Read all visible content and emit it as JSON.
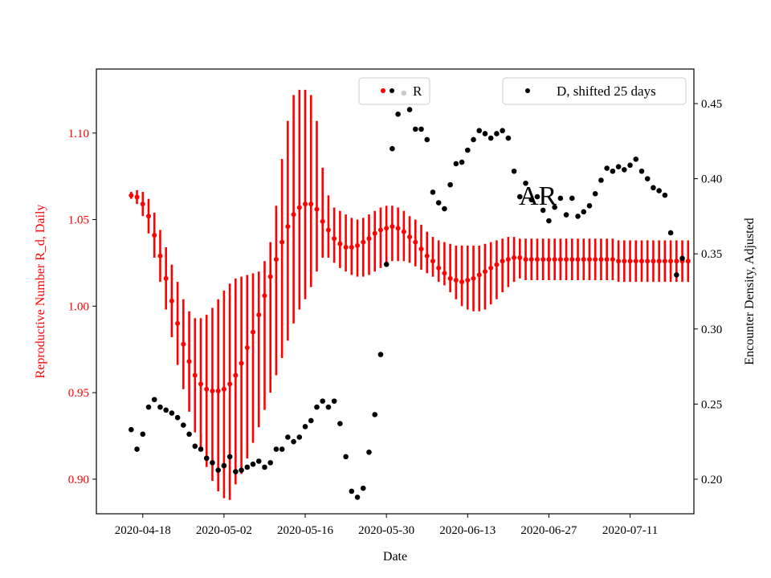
{
  "chart_data": {
    "type": "scatter",
    "annotation": "AR",
    "xlabel": "Date",
    "ylabel_left": "Reproductive Number R_d, Daily",
    "ylabel_right": "Encounter Density, Adjusted",
    "x_ticks": [
      "2020-04-18",
      "2020-05-02",
      "2020-05-16",
      "2020-05-30",
      "2020-06-13",
      "2020-06-27",
      "2020-07-11"
    ],
    "xlim": [
      "2020-04-10",
      "2020-07-22"
    ],
    "ylim_left": [
      0.88,
      1.137
    ],
    "ylim_right": [
      0.177,
      0.473
    ],
    "y_ticks_left": [
      0.9,
      0.95,
      1.0,
      1.05,
      1.1
    ],
    "y_ticks_right": [
      0.2,
      0.25,
      0.3,
      0.35,
      0.4,
      0.45
    ],
    "legend": {
      "r_label": "R",
      "d_label": "D, shifted 25 days"
    },
    "colors": {
      "r": "#ff0000",
      "d": "#000000",
      "left_axis": "#ff0000"
    },
    "series": [
      {
        "name": "R",
        "axis": "left",
        "with_error_bars": true,
        "start_date": "2020-04-16",
        "values": [
          1.064,
          1.063,
          1.059,
          1.052,
          1.041,
          1.029,
          1.016,
          1.003,
          0.99,
          0.978,
          0.968,
          0.96,
          0.955,
          0.952,
          0.951,
          0.951,
          0.952,
          0.955,
          0.96,
          0.967,
          0.976,
          0.985,
          0.995,
          1.006,
          1.017,
          1.027,
          1.037,
          1.046,
          1.053,
          1.057,
          1.059,
          1.059,
          1.056,
          1.049,
          1.044,
          1.039,
          1.036,
          1.034,
          1.034,
          1.035,
          1.037,
          1.039,
          1.042,
          1.044,
          1.045,
          1.046,
          1.045,
          1.043,
          1.04,
          1.037,
          1.033,
          1.029,
          1.026,
          1.022,
          1.019,
          1.016,
          1.015,
          1.014,
          1.015,
          1.016,
          1.018,
          1.02,
          1.022,
          1.024,
          1.026,
          1.027,
          1.028,
          1.028,
          1.027,
          1.027,
          1.027,
          1.027,
          1.027,
          1.027,
          1.027,
          1.027,
          1.027,
          1.027,
          1.027,
          1.027,
          1.027,
          1.027,
          1.027,
          1.027,
          1.026,
          1.026,
          1.026,
          1.026,
          1.026,
          1.026,
          1.026,
          1.026,
          1.026,
          1.026,
          1.026,
          1.026,
          1.026
        ],
        "lower": [
          1.062,
          1.059,
          1.052,
          1.042,
          1.028,
          1.014,
          0.998,
          0.982,
          0.966,
          0.952,
          0.939,
          0.927,
          0.916,
          0.907,
          0.899,
          0.893,
          0.889,
          0.888,
          0.897,
          0.903,
          0.912,
          0.921,
          0.93,
          0.94,
          0.95,
          0.96,
          0.97,
          0.98,
          0.99,
          0.998,
          1.004,
          1.011,
          1.02,
          1.028,
          1.028,
          1.025,
          1.022,
          1.02,
          1.018,
          1.017,
          1.017,
          1.018,
          1.02,
          1.022,
          1.024,
          1.026,
          1.026,
          1.026,
          1.025,
          1.023,
          1.021,
          1.019,
          1.017,
          1.014,
          1.012,
          1.008,
          1.004,
          1.0,
          0.998,
          0.997,
          0.997,
          0.998,
          1.001,
          1.004,
          1.008,
          1.011,
          1.014,
          1.016,
          1.015,
          1.015,
          1.015,
          1.015,
          1.015,
          1.015,
          1.015,
          1.015,
          1.015,
          1.015,
          1.015,
          1.015,
          1.015,
          1.015,
          1.015,
          1.015,
          1.014,
          1.014,
          1.014,
          1.014,
          1.014,
          1.014,
          1.014,
          1.014,
          1.014,
          1.014,
          1.014,
          1.014,
          1.014
        ],
        "upper": [
          1.066,
          1.067,
          1.066,
          1.062,
          1.054,
          1.044,
          1.034,
          1.024,
          1.014,
          1.004,
          0.997,
          0.993,
          0.993,
          0.995,
          0.999,
          1.004,
          1.009,
          1.013,
          1.016,
          1.017,
          1.018,
          1.019,
          1.02,
          1.026,
          1.037,
          1.058,
          1.085,
          1.107,
          1.122,
          1.125,
          1.125,
          1.122,
          1.107,
          1.08,
          1.064,
          1.057,
          1.055,
          1.053,
          1.051,
          1.05,
          1.051,
          1.053,
          1.055,
          1.057,
          1.058,
          1.058,
          1.057,
          1.055,
          1.052,
          1.05,
          1.047,
          1.043,
          1.04,
          1.038,
          1.037,
          1.036,
          1.035,
          1.035,
          1.035,
          1.035,
          1.035,
          1.036,
          1.037,
          1.038,
          1.039,
          1.04,
          1.04,
          1.039,
          1.039,
          1.039,
          1.039,
          1.039,
          1.039,
          1.039,
          1.039,
          1.039,
          1.039,
          1.039,
          1.039,
          1.039,
          1.039,
          1.039,
          1.039,
          1.039,
          1.038,
          1.038,
          1.038,
          1.038,
          1.038,
          1.038,
          1.038,
          1.038,
          1.038,
          1.038,
          1.038,
          1.038,
          1.038
        ]
      },
      {
        "name": "D, shifted 25 days",
        "axis": "right",
        "with_error_bars": false,
        "points": [
          [
            "2020-04-16",
            0.233
          ],
          [
            "2020-04-17",
            0.22
          ],
          [
            "2020-04-18",
            0.23
          ],
          [
            "2020-04-19",
            0.248
          ],
          [
            "2020-04-20",
            0.253
          ],
          [
            "2020-04-21",
            0.248
          ],
          [
            "2020-04-22",
            0.246
          ],
          [
            "2020-04-23",
            0.244
          ],
          [
            "2020-04-24",
            0.241
          ],
          [
            "2020-04-25",
            0.236
          ],
          [
            "2020-04-26",
            0.23
          ],
          [
            "2020-04-27",
            0.222
          ],
          [
            "2020-04-28",
            0.22
          ],
          [
            "2020-04-29",
            0.214
          ],
          [
            "2020-04-30",
            0.211
          ],
          [
            "2020-05-01",
            0.206
          ],
          [
            "2020-05-02",
            0.209
          ],
          [
            "2020-05-03",
            0.215
          ],
          [
            "2020-05-04",
            0.205
          ],
          [
            "2020-05-05",
            0.206
          ],
          [
            "2020-05-06",
            0.208
          ],
          [
            "2020-05-07",
            0.21
          ],
          [
            "2020-05-08",
            0.212
          ],
          [
            "2020-05-09",
            0.208
          ],
          [
            "2020-05-10",
            0.211
          ],
          [
            "2020-05-11",
            0.22
          ],
          [
            "2020-05-12",
            0.22
          ],
          [
            "2020-05-13",
            0.228
          ],
          [
            "2020-05-14",
            0.225
          ],
          [
            "2020-05-15",
            0.228
          ],
          [
            "2020-05-16",
            0.235
          ],
          [
            "2020-05-17",
            0.239
          ],
          [
            "2020-05-18",
            0.248
          ],
          [
            "2020-05-19",
            0.252
          ],
          [
            "2020-05-20",
            0.248
          ],
          [
            "2020-05-21",
            0.252
          ],
          [
            "2020-05-22",
            0.237
          ],
          [
            "2020-05-23",
            0.215
          ],
          [
            "2020-05-24",
            0.192
          ],
          [
            "2020-05-25",
            0.188
          ],
          [
            "2020-05-26",
            0.194
          ],
          [
            "2020-05-27",
            0.218
          ],
          [
            "2020-05-28",
            0.243
          ],
          [
            "2020-05-29",
            0.283
          ],
          [
            "2020-05-30",
            0.343
          ],
          [
            "2020-05-31",
            0.42
          ],
          [
            "2020-06-01",
            0.443
          ],
          [
            "2020-06-02",
            0.457
          ],
          [
            "2020-06-03",
            0.446
          ],
          [
            "2020-06-04",
            0.433
          ],
          [
            "2020-06-05",
            0.433
          ],
          [
            "2020-06-06",
            0.426
          ],
          [
            "2020-06-07",
            0.391
          ],
          [
            "2020-06-08",
            0.384
          ],
          [
            "2020-06-09",
            0.38
          ],
          [
            "2020-06-10",
            0.396
          ],
          [
            "2020-06-11",
            0.41
          ],
          [
            "2020-06-12",
            0.411
          ],
          [
            "2020-06-13",
            0.419
          ],
          [
            "2020-06-14",
            0.426
          ],
          [
            "2020-06-15",
            0.432
          ],
          [
            "2020-06-16",
            0.43
          ],
          [
            "2020-06-17",
            0.427
          ],
          [
            "2020-06-18",
            0.43
          ],
          [
            "2020-06-19",
            0.432
          ],
          [
            "2020-06-20",
            0.427
          ],
          [
            "2020-06-21",
            0.405
          ],
          [
            "2020-06-22",
            0.388
          ],
          [
            "2020-06-23",
            0.397
          ],
          [
            "2020-06-24",
            0.386
          ],
          [
            "2020-06-25",
            0.388
          ],
          [
            "2020-06-26",
            0.379
          ],
          [
            "2020-06-27",
            0.372
          ],
          [
            "2020-06-28",
            0.381
          ],
          [
            "2020-06-29",
            0.387
          ],
          [
            "2020-06-30",
            0.376
          ],
          [
            "2020-07-01",
            0.387
          ],
          [
            "2020-07-02",
            0.375
          ],
          [
            "2020-07-03",
            0.378
          ],
          [
            "2020-07-04",
            0.382
          ],
          [
            "2020-07-05",
            0.39
          ],
          [
            "2020-07-06",
            0.399
          ],
          [
            "2020-07-07",
            0.407
          ],
          [
            "2020-07-08",
            0.405
          ],
          [
            "2020-07-09",
            0.408
          ],
          [
            "2020-07-10",
            0.406
          ],
          [
            "2020-07-11",
            0.409
          ],
          [
            "2020-07-12",
            0.413
          ],
          [
            "2020-07-13",
            0.405
          ],
          [
            "2020-07-14",
            0.4
          ],
          [
            "2020-07-15",
            0.394
          ],
          [
            "2020-07-16",
            0.392
          ],
          [
            "2020-07-17",
            0.389
          ],
          [
            "2020-07-18",
            0.364
          ],
          [
            "2020-07-19",
            0.336
          ],
          [
            "2020-07-20",
            0.347
          ]
        ]
      }
    ]
  }
}
